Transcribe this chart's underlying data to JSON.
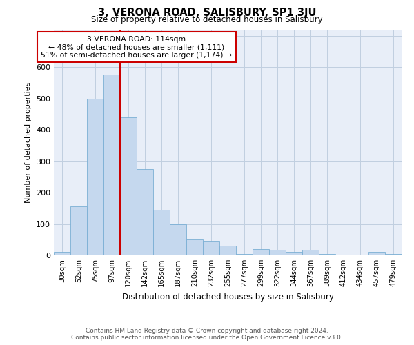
{
  "title": "3, VERONA ROAD, SALISBURY, SP1 3JU",
  "subtitle": "Size of property relative to detached houses in Salisbury",
  "xlabel": "Distribution of detached houses by size in Salisbury",
  "ylabel": "Number of detached properties",
  "footer_line1": "Contains HM Land Registry data © Crown copyright and database right 2024.",
  "footer_line2": "Contains public sector information licensed under the Open Government Licence v3.0.",
  "bar_labels": [
    "30sqm",
    "52sqm",
    "75sqm",
    "97sqm",
    "120sqm",
    "142sqm",
    "165sqm",
    "187sqm",
    "210sqm",
    "232sqm",
    "255sqm",
    "277sqm",
    "299sqm",
    "322sqm",
    "344sqm",
    "367sqm",
    "389sqm",
    "412sqm",
    "434sqm",
    "457sqm",
    "479sqm"
  ],
  "bar_values": [
    10,
    155,
    500,
    575,
    440,
    275,
    145,
    100,
    50,
    47,
    30,
    5,
    20,
    18,
    10,
    18,
    5,
    0,
    0,
    10,
    5
  ],
  "bar_color": "#c5d8ee",
  "bar_edgecolor": "#7aafd4",
  "vline_x": 3.5,
  "annotation_text_line1": "3 VERONA ROAD: 114sqm",
  "annotation_text_line2": "← 48% of detached houses are smaller (1,111)",
  "annotation_text_line3": "51% of semi-detached houses are larger (1,174) →",
  "annotation_box_facecolor": "#ffffff",
  "annotation_box_edgecolor": "#cc0000",
  "vline_color": "#cc0000",
  "grid_color": "#c0cfe0",
  "background_color": "#e8eef8",
  "ylim": [
    0,
    720
  ],
  "yticks": [
    0,
    100,
    200,
    300,
    400,
    500,
    600,
    700
  ]
}
